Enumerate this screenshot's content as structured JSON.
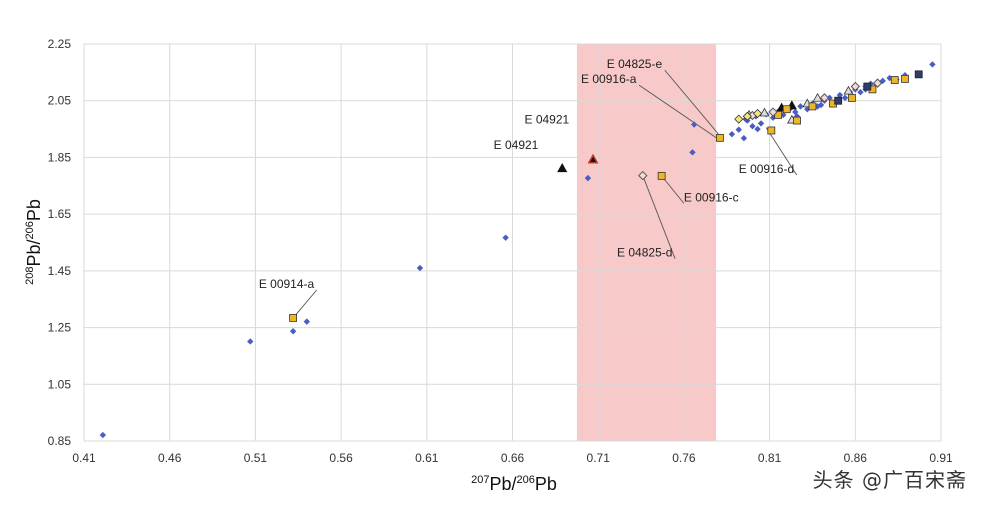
{
  "watermark": "头条 @广百宋斋",
  "colors": {
    "background": "#ffffff",
    "grid": "#d9d9d9",
    "highlight": "#f8c9c9",
    "diamond": "#4a5dc4",
    "triangle": "#111111",
    "triangle_red": "#8b1a1a",
    "square": "#f0b429",
    "square_dark": "#2e3e6b",
    "hollow_diamond": "#f4d9d9"
  },
  "chart_data": {
    "type": "scatter",
    "xlim": [
      0.41,
      0.91
    ],
    "ylim": [
      0.85,
      2.25
    ],
    "x_ticks": [
      "0.41",
      "0.46",
      "0.51",
      "0.56",
      "0.61",
      "0.66",
      "0.71",
      "0.76",
      "0.81",
      "0.86",
      "0.91"
    ],
    "y_ticks": [
      "0.85",
      "1.05",
      "1.25",
      "1.45",
      "1.65",
      "1.85",
      "2.05",
      "2.25"
    ],
    "grid": true,
    "highlight_band": {
      "x0": 0.6976,
      "x1": 0.7788
    },
    "xlabel": {
      "sup": "207",
      "base": "Pb/",
      "sup2": "206",
      "base2": "Pb"
    },
    "ylabel": {
      "sup": "208",
      "base": "Pb/",
      "sup2": "206",
      "base2": "Pb"
    },
    "series": [
      {
        "marker": "diamond",
        "points": [
          [
            0.421,
            0.871
          ],
          [
            0.507,
            1.201
          ],
          [
            0.532,
            1.237
          ],
          [
            0.54,
            1.271
          ],
          [
            0.606,
            1.46
          ],
          [
            0.656,
            1.567
          ],
          [
            0.704,
            1.777
          ],
          [
            0.766,
            1.966
          ],
          [
            0.765,
            1.868
          ],
          [
            0.788,
            1.932
          ],
          [
            0.792,
            1.948
          ],
          [
            0.795,
            1.918
          ],
          [
            0.797,
            1.98
          ],
          [
            0.8,
            1.96
          ],
          [
            0.802,
            1.995
          ],
          [
            0.805,
            1.97
          ],
          [
            0.808,
            2.002
          ],
          [
            0.812,
            1.99
          ],
          [
            0.815,
            2.012
          ],
          [
            0.818,
            2.0
          ],
          [
            0.822,
            2.022
          ],
          [
            0.825,
            2.01
          ],
          [
            0.828,
            2.03
          ],
          [
            0.832,
            2.02
          ],
          [
            0.835,
            2.04
          ],
          [
            0.838,
            2.03
          ],
          [
            0.842,
            2.05
          ],
          [
            0.845,
            2.06
          ],
          [
            0.848,
            2.04
          ],
          [
            0.851,
            2.07
          ],
          [
            0.854,
            2.06
          ],
          [
            0.857,
            2.08
          ],
          [
            0.86,
            2.09
          ],
          [
            0.863,
            2.08
          ],
          [
            0.866,
            2.1
          ],
          [
            0.869,
            2.11
          ],
          [
            0.872,
            2.11
          ],
          [
            0.876,
            2.12
          ],
          [
            0.88,
            2.13
          ],
          [
            0.884,
            2.125
          ],
          [
            0.889,
            2.14
          ],
          [
            0.905,
            2.178
          ],
          [
            0.796,
            1.985
          ],
          [
            0.803,
            1.95
          ],
          [
            0.826,
            1.995
          ],
          [
            0.84,
            2.035
          ],
          [
            0.85,
            2.055
          ],
          [
            0.858,
            2.065
          ],
          [
            0.866,
            2.09
          ]
        ]
      },
      {
        "marker": "triangle",
        "points": [
          [
            0.689,
            1.812
          ],
          [
            0.707,
            1.843
          ],
          [
            0.817,
            2.025
          ],
          [
            0.823,
            2.033
          ]
        ]
      },
      {
        "marker": "triangle_outline",
        "points": [
          [
            0.798,
            2.0
          ],
          [
            0.807,
            2.008
          ],
          [
            0.823,
            1.983
          ],
          [
            0.832,
            2.04
          ],
          [
            0.838,
            2.06
          ],
          [
            0.856,
            2.085
          ]
        ]
      },
      {
        "marker": "square",
        "points": [
          [
            0.532,
            1.284
          ],
          [
            0.747,
            1.785
          ],
          [
            0.781,
            1.919
          ],
          [
            0.811,
            1.945
          ],
          [
            0.815,
            2.0
          ],
          [
            0.82,
            2.02
          ],
          [
            0.826,
            1.98
          ],
          [
            0.835,
            2.03
          ],
          [
            0.847,
            2.04
          ],
          [
            0.858,
            2.06
          ],
          [
            0.87,
            2.09
          ],
          [
            0.883,
            2.123
          ],
          [
            0.889,
            2.127
          ]
        ]
      },
      {
        "marker": "square_dark",
        "points": [
          [
            0.85,
            2.05
          ],
          [
            0.867,
            2.1
          ],
          [
            0.897,
            2.143
          ]
        ]
      },
      {
        "marker": "diamond_outline",
        "points": [
          [
            0.736,
            1.786
          ],
          [
            0.8,
            1.998
          ],
          [
            0.812,
            2.01
          ],
          [
            0.842,
            2.06
          ],
          [
            0.86,
            2.1
          ],
          [
            0.873,
            2.112
          ]
        ]
      },
      {
        "marker": "diamond_yellow",
        "points": [
          [
            0.792,
            1.985
          ],
          [
            0.797,
            1.995
          ],
          [
            0.803,
            2.005
          ]
        ]
      }
    ],
    "annotations": [
      {
        "text": "E 04825-e",
        "x": 0.782,
        "y": 1.919,
        "tx": 0.715,
        "ty": 2.165,
        "anchor": "start",
        "link": true
      },
      {
        "text": "E 00916-a",
        "x": 0.779,
        "y": 1.919,
        "tx": 0.7,
        "ty": 2.112,
        "anchor": "start",
        "link": true
      },
      {
        "text": "E 04921",
        "x": 0.707,
        "y": 1.843,
        "tx": 0.667,
        "ty": 1.97,
        "anchor": "start",
        "link": false
      },
      {
        "text": "E 04921",
        "x": 0.689,
        "y": 1.812,
        "tx": 0.649,
        "ty": 1.88,
        "anchor": "start",
        "link": false
      },
      {
        "text": "E 00916-d",
        "x": 0.808,
        "y": 1.955,
        "tx": 0.792,
        "ty": 1.795,
        "anchor": "start",
        "link": true
      },
      {
        "text": "E 00916-c",
        "x": 0.747,
        "y": 1.785,
        "tx": 0.76,
        "ty": 1.695,
        "anchor": "start",
        "link": true
      },
      {
        "text": "E 04825-d",
        "x": 0.736,
        "y": 1.786,
        "tx": 0.721,
        "ty": 1.5,
        "anchor": "start",
        "link": true
      },
      {
        "text": "E 00914-a",
        "x": 0.532,
        "y": 1.284,
        "tx": 0.512,
        "ty": 1.39,
        "anchor": "start",
        "link": true
      }
    ]
  }
}
